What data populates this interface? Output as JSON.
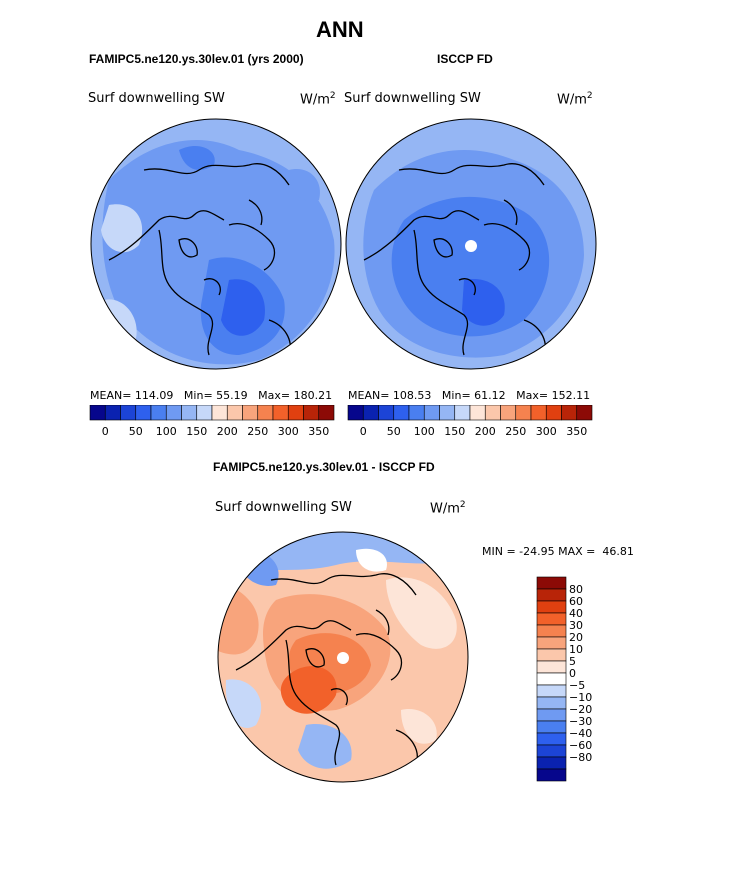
{
  "figure": {
    "title": "ANN",
    "panel_left": {
      "case_title": "FAMIPC5.ne120.ys.30lev.01 (yrs 2000)",
      "variable": "Surf downwelling SW",
      "units_base": "W/m",
      "units_exp": "2",
      "stats": {
        "mean_label": "MEAN=",
        "mean": "114.09",
        "min_label": "Min=",
        "min": "55.19",
        "max_label": "Max=",
        "max": "180.21"
      }
    },
    "panel_right": {
      "case_title": "ISCCP FD",
      "variable": "Surf downwelling SW",
      "units_base": "W/m",
      "units_exp": "2",
      "stats": {
        "mean_label": "MEAN=",
        "mean": "108.53",
        "min_label": "Min=",
        "min": "61.12",
        "max_label": "Max=",
        "max": "152.11"
      }
    },
    "panel_diff": {
      "case_title": "FAMIPC5.ne120.ys.30lev.01 - ISCCP FD",
      "variable": "Surf downwelling SW",
      "units_base": "W/m",
      "units_exp": "2",
      "minmax_text": "MIN = -24.95 MAX =  46.81"
    }
  },
  "chart_data": [
    {
      "type": "heatmap",
      "projection": "north-polar-stereographic",
      "title": "FAMIPC5.ne120.ys.30lev.01 (yrs 2000)",
      "variable": "Surf downwelling SW",
      "units": "W/m2",
      "mean": 114.09,
      "min": 55.19,
      "max": 180.21,
      "colorbar_ticks": [
        0,
        50,
        100,
        150,
        200,
        250,
        300,
        350
      ],
      "colorbar_levels": 16,
      "colorbar_orientation": "horizontal",
      "colorbar_colors": [
        "#06068c",
        "#0a22b0",
        "#1c44d6",
        "#2e60ee",
        "#4a7ff0",
        "#6f9af2",
        "#95b6f4",
        "#c6d8f9",
        "#fde5d8",
        "#fbc7ab",
        "#f8a47c",
        "#f5824f",
        "#f2612a",
        "#e04010",
        "#b82408",
        "#8c0a06"
      ]
    },
    {
      "type": "heatmap",
      "projection": "north-polar-stereographic",
      "title": "ISCCP FD",
      "variable": "Surf downwelling SW",
      "units": "W/m2",
      "mean": 108.53,
      "min": 61.12,
      "max": 152.11,
      "colorbar_ticks": [
        0,
        50,
        100,
        150,
        200,
        250,
        300,
        350
      ],
      "colorbar_levels": 16,
      "colorbar_orientation": "horizontal",
      "colorbar_colors": [
        "#06068c",
        "#0a22b0",
        "#1c44d6",
        "#2e60ee",
        "#4a7ff0",
        "#6f9af2",
        "#95b6f4",
        "#c6d8f9",
        "#fde5d8",
        "#fbc7ab",
        "#f8a47c",
        "#f5824f",
        "#f2612a",
        "#e04010",
        "#b82408",
        "#8c0a06"
      ]
    },
    {
      "type": "heatmap",
      "projection": "north-polar-stereographic",
      "title": "FAMIPC5.ne120.ys.30lev.01 - ISCCP FD",
      "variable": "Surf downwelling SW",
      "units": "W/m2",
      "min": -24.95,
      "max": 46.81,
      "colorbar_ticks": [
        "80",
        "60",
        "40",
        "30",
        "20",
        "10",
        "5",
        "0",
        "−5",
        "−10",
        "−20",
        "−30",
        "−40",
        "−60",
        "−80"
      ],
      "colorbar_orientation": "vertical",
      "colorbar_colors": [
        "#8c0a06",
        "#b82408",
        "#e04010",
        "#f2612a",
        "#f5824f",
        "#f8a47c",
        "#fbc7ab",
        "#fde5d8",
        "#ffffff",
        "#c6d8f9",
        "#95b6f4",
        "#6f9af2",
        "#4a7ff0",
        "#2e60ee",
        "#1c44d6",
        "#0a22b0",
        "#06068c"
      ]
    }
  ]
}
